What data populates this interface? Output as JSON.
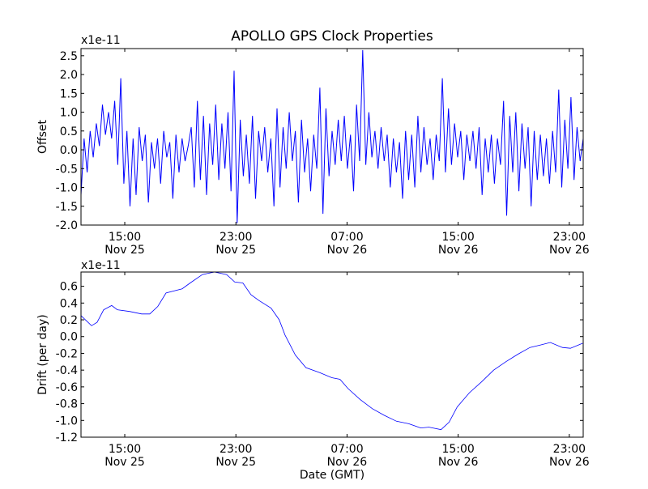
{
  "chart_data": [
    {
      "type": "line",
      "title": "APOLLO GPS Clock Properties",
      "ylabel": "Offset",
      "xlabel": "",
      "multiplier_label": "x1e-11",
      "x_unit": "hours since Nov 25 00:00 GMT",
      "xlim": [
        11.85,
        48.0
      ],
      "ylim": [
        -2.0,
        2.69
      ],
      "yticks": [
        -2.0,
        -1.5,
        -1.0,
        -0.5,
        0.0,
        0.5,
        1.0,
        1.5,
        2.0,
        2.5
      ],
      "ytick_labels": [
        "-2.0",
        "-1.5",
        "-1.0",
        "-0.5",
        "0.0",
        "0.5",
        "1.0",
        "1.5",
        "2.0",
        "2.5"
      ],
      "xticks": [
        15,
        23,
        31,
        39,
        47
      ],
      "xtick_labels": [
        [
          "15:00",
          "Nov 25"
        ],
        [
          "23:00",
          "Nov 25"
        ],
        [
          "07:00",
          "Nov 26"
        ],
        [
          "15:00",
          "Nov 26"
        ],
        [
          "23:00",
          "Nov 26"
        ]
      ],
      "color": "#0000ff",
      "series": [
        {
          "name": "Offset",
          "x_start": 11.85,
          "x_end": 48.0,
          "values": [
            -1.2,
            0.3,
            -0.6,
            0.5,
            -0.2,
            0.7,
            0.1,
            1.2,
            0.4,
            1.0,
            0.3,
            1.3,
            -0.4,
            1.9,
            -0.9,
            0.5,
            -1.5,
            0.3,
            -1.2,
            0.6,
            -0.3,
            0.4,
            -1.4,
            0.2,
            -0.5,
            0.3,
            -0.9,
            0.5,
            -0.2,
            0.2,
            -1.3,
            0.4,
            -0.6,
            0.3,
            -0.3,
            0.1,
            0.6,
            -1.0,
            1.3,
            -0.8,
            0.9,
            -1.2,
            0.7,
            -0.4,
            1.2,
            -0.8,
            0.7,
            -0.5,
            1.0,
            -1.1,
            2.1,
            -1.95,
            0.8,
            -0.7,
            0.4,
            -0.9,
            0.9,
            -1.3,
            0.5,
            -0.3,
            0.6,
            -0.6,
            0.3,
            -1.5,
            1.1,
            -1.0,
            0.6,
            -0.5,
            1.0,
            -0.3,
            0.5,
            -1.4,
            0.8,
            -0.6,
            0.3,
            -1.1,
            0.4,
            -0.5,
            1.65,
            -1.7,
            1.1,
            -0.7,
            0.5,
            -0.4,
            0.8,
            -0.3,
            0.9,
            -0.5,
            0.4,
            -1.1,
            1.2,
            -0.3,
            2.65,
            -0.4,
            1.0,
            -0.2,
            0.5,
            -0.5,
            0.6,
            -0.3,
            0.4,
            -1.0,
            0.3,
            -0.6,
            0.2,
            -1.3,
            0.5,
            -0.8,
            0.4,
            -1.0,
            0.9,
            -0.6,
            0.6,
            -0.4,
            0.3,
            -0.8,
            0.4,
            -0.3,
            1.9,
            -0.6,
            1.1,
            -0.4,
            0.7,
            -0.2,
            0.5,
            -0.8,
            0.4,
            -0.3,
            0.5,
            -0.5,
            0.6,
            -1.2,
            0.3,
            -0.6,
            0.4,
            -0.9,
            0.3,
            -0.4,
            1.3,
            -1.75,
            0.9,
            -0.6,
            1.0,
            -1.1,
            0.7,
            -0.5,
            0.6,
            -1.5,
            0.5,
            -0.8,
            0.4,
            -0.7,
            0.3,
            -0.9,
            0.5,
            -0.6,
            1.6,
            -1.0,
            0.8,
            -0.5,
            1.4,
            -0.8,
            0.6,
            -0.3,
            0.3
          ]
        }
      ]
    },
    {
      "type": "line",
      "title": "",
      "ylabel": "Drift (per day)",
      "xlabel": "Date (GMT)",
      "multiplier_label": "x1e-11",
      "x_unit": "hours since Nov 25 00:00 GMT",
      "xlim": [
        11.85,
        48.0
      ],
      "ylim": [
        -1.2,
        0.77
      ],
      "yticks": [
        -1.2,
        -1.0,
        -0.8,
        -0.6,
        -0.4,
        -0.2,
        0.0,
        0.2,
        0.4,
        0.6
      ],
      "ytick_labels": [
        "-1.2",
        "-1.0",
        "-0.8",
        "-0.6",
        "-0.4",
        "-0.2",
        "0.0",
        "0.2",
        "0.4",
        "0.6"
      ],
      "xticks": [
        15,
        23,
        31,
        39,
        47
      ],
      "xtick_labels": [
        [
          "15:00",
          "Nov 25"
        ],
        [
          "23:00",
          "Nov 25"
        ],
        [
          "07:00",
          "Nov 26"
        ],
        [
          "15:00",
          "Nov 26"
        ],
        [
          "23:00",
          "Nov 26"
        ]
      ],
      "color": "#0000ff",
      "series": [
        {
          "name": "Drift",
          "x": [
            11.85,
            12.61,
            13.01,
            13.48,
            14.06,
            14.47,
            15.34,
            16.22,
            16.8,
            17.38,
            17.97,
            19.13,
            19.71,
            20.59,
            21.46,
            22.33,
            22.92,
            23.5,
            24.08,
            24.66,
            25.53,
            26.12,
            26.53,
            27.28,
            28.04,
            29.03,
            29.9,
            30.49,
            31.07,
            31.94,
            32.82,
            33.69,
            34.56,
            35.44,
            36.31,
            36.89,
            37.77,
            38.35,
            38.93,
            39.81,
            40.68,
            41.55,
            42.43,
            43.3,
            44.17,
            44.93,
            45.63,
            46.5,
            47.08,
            47.96
          ],
          "y": [
            0.25,
            0.13,
            0.17,
            0.32,
            0.37,
            0.32,
            0.3,
            0.27,
            0.27,
            0.36,
            0.52,
            0.57,
            0.64,
            0.74,
            0.77,
            0.74,
            0.65,
            0.64,
            0.5,
            0.43,
            0.34,
            0.2,
            0.02,
            -0.22,
            -0.37,
            -0.43,
            -0.49,
            -0.51,
            -0.62,
            -0.75,
            -0.86,
            -0.94,
            -1.01,
            -1.04,
            -1.09,
            -1.08,
            -1.11,
            -1.02,
            -0.84,
            -0.67,
            -0.54,
            -0.4,
            -0.3,
            -0.21,
            -0.13,
            -0.1,
            -0.07,
            -0.13,
            -0.14,
            -0.08
          ]
        }
      ]
    }
  ]
}
